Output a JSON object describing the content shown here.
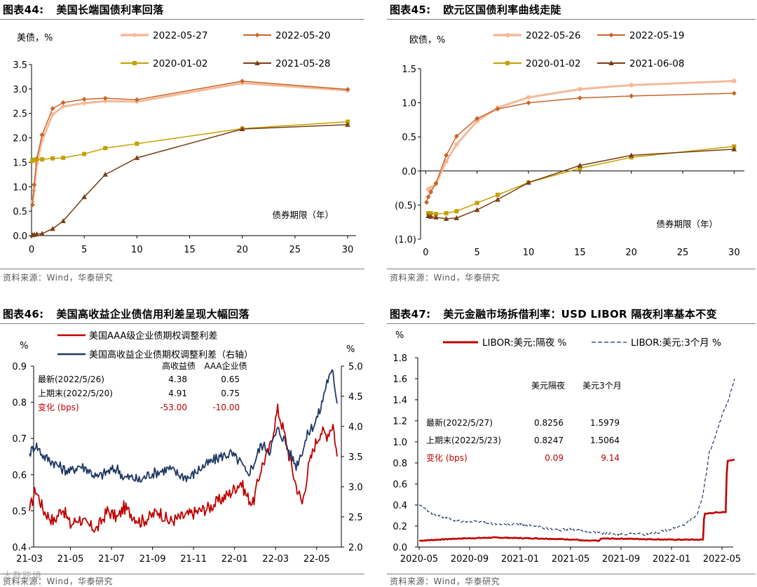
{
  "charts": [
    {
      "number": "图表44:",
      "title": "美国长端国债利率回落",
      "source": "资料来源：Wind，华泰研究",
      "chart_data": {
        "type": "line",
        "ylabel": "美债，%",
        "xlabel": "债券期限（年）",
        "x_domain": [
          0,
          30.8
        ],
        "ylim": [
          0,
          3.5
        ],
        "yticks": [
          0,
          0.5,
          1.0,
          1.5,
          2.0,
          2.5,
          3.0,
          3.5
        ],
        "ytick_labels": [
          "0.0",
          "0.5",
          "1.0",
          "1.5",
          "2.0",
          "2.5",
          "3.0",
          "3.5"
        ],
        "xticks": [
          0,
          5,
          10,
          15,
          20,
          25,
          30
        ],
        "xtick_labels": [
          "0",
          "5",
          "10",
          "15",
          "20",
          "25",
          "30"
        ],
        "series": [
          {
            "name": "2022-05-27",
            "color": "#f4b998",
            "width": 3,
            "marker": "diamond",
            "x": [
              0.083,
              0.25,
              0.5,
              1,
              2,
              3,
              5,
              7,
              10,
              20,
              30
            ],
            "y": [
              0.69,
              0.92,
              1.47,
              1.95,
              2.48,
              2.64,
              2.71,
              2.75,
              2.74,
              3.12,
              2.97
            ]
          },
          {
            "name": "2022-05-20",
            "color": "#c9652a",
            "width": 1.5,
            "marker": "diamond",
            "x": [
              0.083,
              0.25,
              0.5,
              1,
              2,
              3,
              5,
              7,
              10,
              20,
              30
            ],
            "y": [
              0.63,
              1.04,
              1.58,
              2.06,
              2.6,
              2.72,
              2.79,
              2.81,
              2.78,
              3.16,
              2.99
            ]
          },
          {
            "name": "2020-01-02",
            "color": "#c4a000",
            "width": 1.5,
            "marker": "square",
            "x": [
              0.083,
              0.25,
              0.5,
              1,
              2,
              3,
              5,
              7,
              10,
              20,
              30
            ],
            "y": [
              1.53,
              1.55,
              1.56,
              1.56,
              1.58,
              1.59,
              1.67,
              1.79,
              1.88,
              2.19,
              2.33
            ]
          },
          {
            "name": "2021-05-28",
            "color": "#7b3e14",
            "width": 1.5,
            "marker": "triangle",
            "x": [
              0.083,
              0.25,
              0.5,
              1,
              2,
              3,
              5,
              7,
              10,
              20,
              30
            ],
            "y": [
              0.01,
              0.02,
              0.03,
              0.04,
              0.14,
              0.3,
              0.79,
              1.25,
              1.59,
              2.18,
              2.27
            ]
          }
        ]
      }
    },
    {
      "number": "图表45:",
      "title": "欧元区国债利率曲线走陡",
      "source": "资料来源：Wind，华泰研究",
      "chart_data": {
        "type": "line",
        "ylabel": "欧债，%",
        "xlabel": "债券期限（年）",
        "x_domain": [
          -0.5,
          31
        ],
        "ylim": [
          -1.0,
          1.5
        ],
        "yticks": [
          -1.0,
          -0.5,
          0,
          0.5,
          1.0,
          1.5
        ],
        "ytick_labels": [
          "(1.0)",
          "(0.5)",
          "0.0",
          "0.5",
          "1.0",
          "1.5"
        ],
        "xticks": [
          0,
          5,
          10,
          15,
          20,
          25,
          30
        ],
        "xtick_labels": [
          "0",
          "5",
          "10",
          "15",
          "20",
          "25",
          "30"
        ],
        "series": [
          {
            "name": "2022-05-26",
            "color": "#f4b998",
            "width": 3,
            "marker": "circle",
            "x": [
              0.25,
              0.5,
              1,
              2,
              3,
              5,
              7,
              10,
              15,
              20,
              30
            ],
            "y": [
              -0.27,
              -0.25,
              -0.19,
              0.14,
              0.39,
              0.73,
              0.93,
              1.08,
              1.2,
              1.26,
              1.32
            ]
          },
          {
            "name": "2022-05-19",
            "color": "#c9652a",
            "width": 1.5,
            "marker": "diamond",
            "x": [
              0.083,
              0.25,
              0.5,
              1,
              2,
              3,
              5,
              7,
              10,
              15,
              20,
              30
            ],
            "y": [
              -0.46,
              -0.38,
              -0.31,
              -0.18,
              0.23,
              0.51,
              0.77,
              0.91,
              1.0,
              1.07,
              1.1,
              1.14
            ]
          },
          {
            "name": "2020-01-02",
            "color": "#c4a000",
            "width": 1.5,
            "marker": "square",
            "x": [
              0.25,
              0.5,
              1,
              2,
              3,
              5,
              7,
              10,
              15,
              20,
              30
            ],
            "y": [
              -0.62,
              -0.62,
              -0.63,
              -0.62,
              -0.59,
              -0.47,
              -0.35,
              -0.17,
              0.04,
              0.2,
              0.36
            ]
          },
          {
            "name": "2021-06-08",
            "color": "#7b3e14",
            "width": 1.5,
            "marker": "triangle",
            "x": [
              0.25,
              0.5,
              1,
              2,
              3,
              5,
              7,
              10,
              15,
              20,
              30
            ],
            "y": [
              -0.66,
              -0.67,
              -0.68,
              -0.7,
              -0.69,
              -0.57,
              -0.42,
              -0.17,
              0.08,
              0.23,
              0.32
            ]
          }
        ]
      }
    },
    {
      "number": "图表46:",
      "title": "美国高收益企业债信用利差呈现大幅回落",
      "source": "资料来源：Wind，华泰研究",
      "chart_data": {
        "type": "line",
        "ylabel_left": "%",
        "ylabel_right": "%",
        "ylim_left": [
          0.4,
          0.9
        ],
        "yticks_left": [
          0.4,
          0.5,
          0.6,
          0.7,
          0.8,
          0.9
        ],
        "ytick_labels_left": [
          "0.4",
          "0.5",
          "0.6",
          "0.7",
          "0.8",
          "0.9"
        ],
        "ylim_right": [
          2.0,
          5.0
        ],
        "yticks_right": [
          2.0,
          2.5,
          3.0,
          3.5,
          4.0,
          4.5,
          5.0
        ],
        "ytick_labels_right": [
          "2.0",
          "2.5",
          "3.0",
          "3.5",
          "4.0",
          "4.5",
          "5.0"
        ],
        "xtick_labels": [
          "21-03",
          "21-05",
          "21-07",
          "21-09",
          "21-11",
          "22-01",
          "22-03",
          "22-05"
        ],
        "x_month_range": [
          0,
          15
        ],
        "legend": [
          "美国AAA级企业债期权调整利差",
          "美国高收益企业债期权调整利差（右轴）"
        ],
        "series": [
          {
            "name": "美国AAA级企业债期权调整利差",
            "axis": "left",
            "color": "#c00000",
            "anchors_month": [
              0,
              0.3,
              0.7,
              1.2,
              1.6,
              2.0,
              2.4,
              2.8,
              3.3,
              3.8,
              4.3,
              4.6,
              5.0,
              5.4,
              5.8,
              6.3,
              6.8,
              7.3,
              7.8,
              8.3,
              8.8,
              9.3,
              9.8,
              10.3,
              10.6,
              10.9,
              11.3,
              11.7,
              12.1,
              12.4,
              12.7,
              13.0,
              13.3,
              13.6,
              13.9,
              14.2,
              14.5,
              14.8,
              15.0
            ],
            "anchors_val": [
              0.5,
              0.56,
              0.5,
              0.47,
              0.51,
              0.46,
              0.48,
              0.46,
              0.45,
              0.5,
              0.48,
              0.51,
              0.49,
              0.47,
              0.48,
              0.5,
              0.47,
              0.48,
              0.49,
              0.5,
              0.51,
              0.53,
              0.55,
              0.58,
              0.54,
              0.52,
              0.62,
              0.67,
              0.78,
              0.72,
              0.64,
              0.57,
              0.52,
              0.62,
              0.68,
              0.72,
              0.71,
              0.74,
              0.65
            ]
          },
          {
            "name": "美国高收益企业债期权调整利差（右轴）",
            "axis": "right",
            "color": "#1f3864",
            "anchors_month": [
              0,
              0.3,
              0.7,
              1.2,
              1.6,
              2.0,
              2.4,
              2.8,
              3.3,
              3.8,
              4.3,
              4.6,
              5.0,
              5.4,
              5.8,
              6.3,
              6.8,
              7.3,
              7.8,
              8.3,
              8.8,
              9.3,
              9.8,
              10.3,
              10.6,
              10.9,
              11.3,
              11.7,
              12.1,
              12.4,
              12.7,
              13.0,
              13.3,
              13.6,
              13.9,
              14.2,
              14.5,
              14.8,
              15.0
            ],
            "anchors_val": [
              3.55,
              3.7,
              3.5,
              3.4,
              3.3,
              3.25,
              3.35,
              3.3,
              3.15,
              3.25,
              3.3,
              3.15,
              3.15,
              3.1,
              3.2,
              3.25,
              3.3,
              3.2,
              3.15,
              3.3,
              3.4,
              3.5,
              3.55,
              3.4,
              3.2,
              3.35,
              3.7,
              3.6,
              3.95,
              3.8,
              3.55,
              3.35,
              3.6,
              3.9,
              4.05,
              4.3,
              4.75,
              4.9,
              4.38
            ]
          }
        ],
        "table": {
          "headers": [
            "高收益债",
            "AAA企业债"
          ],
          "rows": [
            {
              "label": "最新(2022/5/26)",
              "values": [
                "4.38",
                "0.65"
              ]
            },
            {
              "label": "上期末(2022/5/20)",
              "values": [
                "4.91",
                "0.75"
              ]
            },
            {
              "label": "变化 (bps)",
              "values": [
                "-53.00",
                "-10.00"
              ]
            }
          ]
        }
      }
    },
    {
      "number": "图表47:",
      "title": "美元金融市场拆借利率：USD LIBOR 隔夜利率基本不变",
      "source": "资料来源：Wind，华泰研究",
      "chart_data": {
        "type": "line",
        "ylabel": "%",
        "ylim": [
          0,
          1.8
        ],
        "yticks": [
          0,
          0.2,
          0.4,
          0.6,
          0.8,
          1.0,
          1.2,
          1.4,
          1.6,
          1.8
        ],
        "ytick_labels": [
          "0.0",
          "0.2",
          "0.4",
          "0.6",
          "0.8",
          "1.0",
          "1.2",
          "1.4",
          "1.6",
          "1.8"
        ],
        "xtick_labels": [
          "2020-05",
          "2020-09",
          "2021-01",
          "2021-05",
          "2021-09",
          "2022-01",
          "2022-05"
        ],
        "x_month_range": [
          0,
          25
        ],
        "legend": [
          "LIBOR:美元:隔夜 %",
          "LIBOR:美元:3个月 %"
        ],
        "series": [
          {
            "name": "LIBOR:美元:隔夜 %",
            "color": "#c00000",
            "style": "solid",
            "anchors_month": [
              0,
              1.5,
              3,
              6,
              10,
              12.5,
              13,
              14.3,
              14.4,
              16,
              20,
              22.5,
              22.6,
              23.3,
              23.4,
              24.3,
              24.4,
              25
            ],
            "anchors_val": [
              0.06,
              0.07,
              0.08,
              0.09,
              0.08,
              0.07,
              0.06,
              0.06,
              0.08,
              0.08,
              0.07,
              0.07,
              0.32,
              0.32,
              0.33,
              0.33,
              0.82,
              0.83
            ]
          },
          {
            "name": "LIBOR:美元:3个月 %",
            "color": "#1f3864",
            "style": "dashed",
            "anchors_month": [
              0,
              1,
              2,
              3,
              4,
              5,
              6,
              7,
              8,
              9,
              10,
              11,
              12,
              13,
              14,
              15,
              16,
              17,
              18,
              19,
              20,
              21,
              22,
              22.5,
              23,
              23.5,
              24,
              24.5,
              25
            ],
            "anchors_val": [
              0.4,
              0.32,
              0.28,
              0.25,
              0.24,
              0.24,
              0.22,
              0.21,
              0.22,
              0.2,
              0.18,
              0.16,
              0.17,
              0.15,
              0.14,
              0.13,
              0.12,
              0.13,
              0.12,
              0.14,
              0.17,
              0.21,
              0.3,
              0.5,
              0.9,
              1.05,
              1.25,
              1.4,
              1.6
            ]
          }
        ],
        "table": {
          "headers": [
            "美元隔夜",
            "美元3个月"
          ],
          "rows": [
            {
              "label": "最新(2022/5/27)",
              "values": [
                "0.8256",
                "1.5979"
              ]
            },
            {
              "label": "上期末(2022/5/23)",
              "values": [
                "0.8247",
                "1.5064"
              ]
            },
            {
              "label": "变化 (bps)",
              "values": [
                "0.09",
                "9.14"
              ]
            }
          ]
        }
      }
    }
  ],
  "colors": {
    "change_row": "#c00000",
    "axis": "#000000",
    "rule": "#7f7f7f"
  },
  "watermark": "大数跨境"
}
